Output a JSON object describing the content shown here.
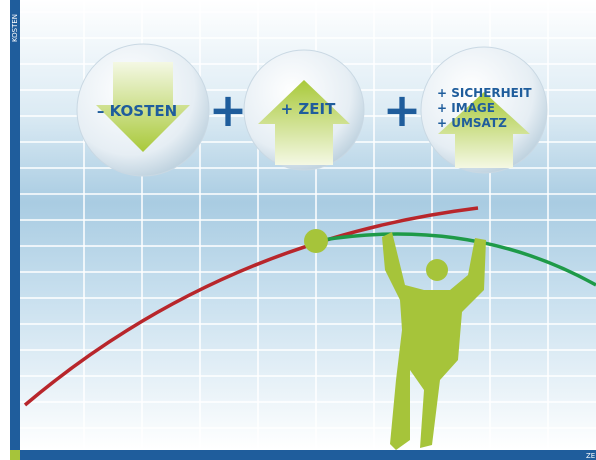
{
  "axis": {
    "y_label": "KOSTEN",
    "x_label": "ZE"
  },
  "bubbles": [
    {
      "label_lines": [
        "– KOSTEN"
      ]
    },
    {
      "label_lines": [
        "+ ZEIT"
      ]
    },
    {
      "label_lines": [
        "+ SICHERHEIT",
        "+ IMAGE",
        "+ UMSATZ"
      ]
    }
  ],
  "operators": [
    "+",
    "+"
  ]
}
